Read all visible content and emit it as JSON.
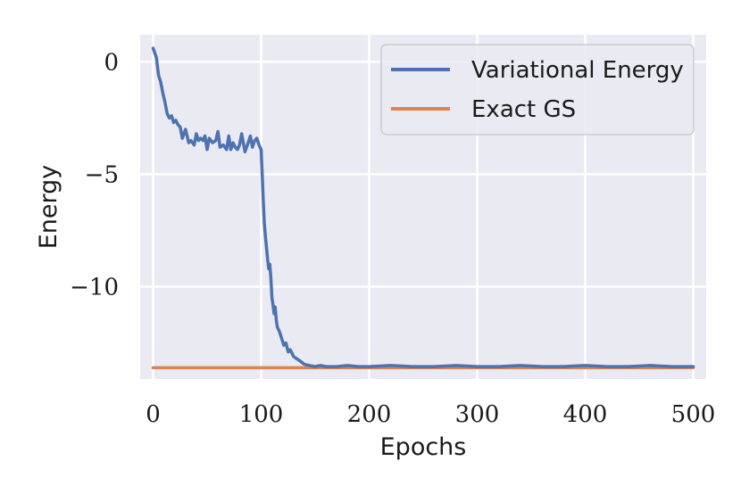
{
  "chart_data": {
    "type": "line",
    "xlabel": "Epochs",
    "ylabel": "Energy",
    "xlim": [
      -12,
      512
    ],
    "ylim": [
      -14.1,
      1.2
    ],
    "xticks": [
      0,
      100,
      200,
      300,
      400,
      500
    ],
    "xtick_labels": [
      "0",
      "100",
      "200",
      "300",
      "400",
      "500"
    ],
    "yticks": [
      0,
      -5,
      -10
    ],
    "ytick_labels": [
      "0",
      "−5",
      "−10"
    ],
    "grid": true,
    "legend_position": "top-right",
    "series": [
      {
        "name": "Variational Energy",
        "color": "#4c72b0",
        "x": [
          0,
          3,
          5,
          7,
          9,
          11,
          13,
          15,
          17,
          19,
          21,
          23,
          25,
          27,
          30,
          33,
          35,
          38,
          40,
          42,
          44,
          46,
          48,
          50,
          52,
          55,
          58,
          60,
          62,
          65,
          68,
          70,
          72,
          74,
          76,
          78,
          80,
          82,
          85,
          88,
          90,
          92,
          94,
          96,
          98,
          100,
          101,
          102,
          103,
          104,
          105,
          106,
          107,
          108,
          109,
          110,
          111,
          112,
          113,
          114,
          115,
          117,
          119,
          121,
          123,
          125,
          127,
          130,
          133,
          136,
          140,
          145,
          150,
          155,
          160,
          170,
          180,
          190,
          200,
          220,
          240,
          260,
          280,
          300,
          320,
          340,
          360,
          380,
          400,
          420,
          440,
          460,
          480,
          500
        ],
        "y": [
          0.6,
          0.2,
          -0.6,
          -0.9,
          -1.4,
          -1.8,
          -2.3,
          -2.5,
          -2.4,
          -2.7,
          -2.6,
          -2.8,
          -2.9,
          -3.4,
          -3.0,
          -3.6,
          -3.5,
          -3.7,
          -3.2,
          -3.5,
          -3.4,
          -3.5,
          -3.3,
          -3.9,
          -3.4,
          -3.6,
          -3.5,
          -3.1,
          -3.8,
          -3.7,
          -3.9,
          -3.3,
          -3.9,
          -3.6,
          -3.8,
          -3.9,
          -3.7,
          -3.2,
          -4.0,
          -3.6,
          -3.3,
          -3.8,
          -3.5,
          -3.4,
          -3.7,
          -3.9,
          -5.0,
          -6.2,
          -7.2,
          -7.8,
          -8.3,
          -8.8,
          -9.2,
          -9.0,
          -9.6,
          -10.5,
          -10.8,
          -11.2,
          -10.9,
          -11.5,
          -11.8,
          -12.0,
          -12.3,
          -12.6,
          -12.5,
          -12.9,
          -12.8,
          -13.1,
          -13.2,
          -13.3,
          -13.45,
          -13.5,
          -13.55,
          -13.5,
          -13.55,
          -13.55,
          -13.5,
          -13.55,
          -13.55,
          -13.5,
          -13.55,
          -13.55,
          -13.5,
          -13.55,
          -13.55,
          -13.5,
          -13.55,
          -13.55,
          -13.5,
          -13.55,
          -13.55,
          -13.5,
          -13.55,
          -13.55
        ]
      },
      {
        "name": "Exact GS",
        "color": "#dd8452",
        "x": [
          0,
          500
        ],
        "y": [
          -13.6,
          -13.6
        ]
      }
    ]
  }
}
